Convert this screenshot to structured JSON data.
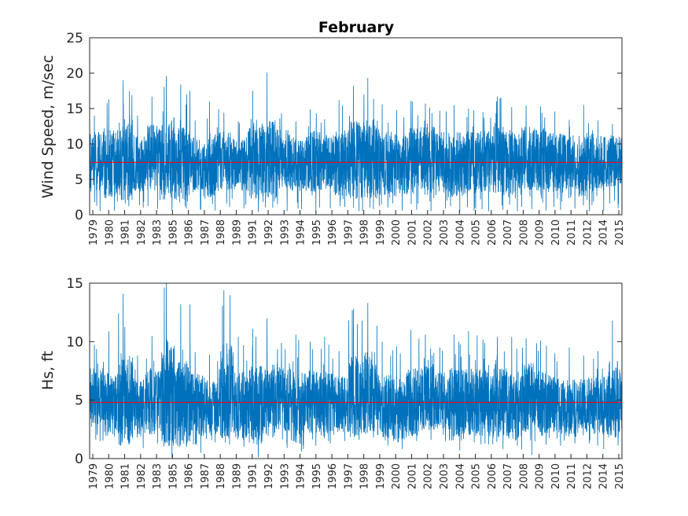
{
  "title": "February",
  "chart_data": [
    {
      "type": "line",
      "title": "February",
      "xlabel": "",
      "ylabel": "Wind Speed, m/sec",
      "ylim": [
        0,
        25
      ],
      "yticks": [
        0,
        5,
        10,
        15,
        20,
        25
      ],
      "xticks": [
        "1979",
        "1980",
        "1981",
        "1982",
        "1983",
        "1984",
        "1985",
        "1986",
        "1987",
        "1988",
        "1989",
        "1990",
        "1991",
        "1992",
        "1993",
        "1994",
        "1995",
        "1996",
        "1997",
        "1998",
        "1999",
        "2000",
        "2001",
        "2002",
        "2003",
        "2004",
        "2005",
        "2006",
        "2007",
        "2008",
        "2009",
        "2010",
        "2011",
        "2012",
        "2013",
        "2014",
        "2015"
      ],
      "xtick_labels_shown": [
        "1979",
        "1980",
        "1981",
        "1982",
        "1983",
        "1984",
        "1985",
        "1986",
        "1987",
        "1988",
        "1989",
        "1990",
        "1991",
        "1992",
        "1993",
        "1994",
        "1995",
        "1996",
        "1997",
        "1998",
        "1999",
        "2000",
        "2001",
        "2002",
        "2003",
        "2004",
        "2005",
        "2006",
        "2007",
        "2008",
        "2009",
        "2010",
        "2011",
        "2012",
        "2013",
        "2014",
        "2015"
      ],
      "x_tick_labels_rendered": [
        "1979",
        "1980",
        "1981",
        "1982",
        "1983",
        "1985",
        "1986",
        "1987",
        "1988",
        "1989",
        "1991",
        "1992",
        "1993",
        "1994",
        "1995",
        "1996",
        "1997",
        "1998",
        "1999",
        "2000",
        "2001",
        "2002",
        "2003",
        "2004",
        "2005",
        "2006",
        "2007",
        "2008",
        "2009",
        "2010",
        "2011",
        "2012",
        "2014",
        "2015"
      ],
      "series_color": "#0072BD",
      "mean_color": "#FF0000",
      "mean": 7.4,
      "n_years": 37,
      "year_stats": {
        "mean": [
          7.6,
          7.2,
          7.5,
          7.3,
          7.8,
          7.9,
          7.1,
          7.4,
          7.0,
          7.6,
          7.2,
          7.3,
          7.5,
          7.8,
          7.1,
          7.6,
          7.4,
          7.3,
          7.7,
          7.9,
          7.2,
          7.0,
          7.6,
          7.8,
          7.4,
          7.1,
          7.3,
          7.5,
          7.6,
          7.2,
          7.9,
          7.7,
          7.3,
          7.4,
          7.1,
          7.2,
          7.5
        ],
        "peak": [
          14,
          16.3,
          19,
          14,
          16.7,
          19.6,
          18.4,
          13.3,
          16,
          14.4,
          13.2,
          17.5,
          20.1,
          14.3,
          13.2,
          14.9,
          13.5,
          16.2,
          18.2,
          19.3,
          15.6,
          14.8,
          16.1,
          15.7,
          14.7,
          15.5,
          15.0,
          14.5,
          16.7,
          15.2,
          15.4,
          15.3,
          14.6,
          13.4,
          15.5,
          13.3,
          12.8
        ],
        "low": [
          0.5,
          0.6,
          1.2,
          1.0,
          0.8,
          0.6,
          0.9,
          0.7,
          0.6,
          1.1,
          0.9,
          0.4,
          1.0,
          0.5,
          0.8,
          0.7,
          0.9,
          1.1,
          0.5,
          0.8,
          1.0,
          0.6,
          0.7,
          0.5,
          0.9,
          0.4,
          0.6,
          0.5,
          0.7,
          0.5,
          0.8,
          0.6,
          0.7,
          0.9,
          0.5,
          0.6,
          0.9
        ]
      }
    },
    {
      "type": "line",
      "title": "",
      "xlabel": "",
      "ylabel": "Hs, ft",
      "ylim": [
        0,
        15
      ],
      "yticks": [
        0,
        5,
        10,
        15
      ],
      "x_tick_labels_rendered": [
        "1979",
        "1980",
        "1981",
        "1982",
        "1983",
        "1985",
        "1986",
        "1987",
        "1988",
        "1989",
        "1991",
        "1992",
        "1993",
        "1994",
        "1995",
        "1996",
        "1997",
        "1998",
        "1999",
        "2000",
        "2001",
        "2002",
        "2003",
        "2004",
        "2005",
        "2006",
        "2007",
        "2008",
        "2009",
        "2010",
        "2011",
        "2012",
        "2014",
        "2015"
      ],
      "series_color": "#0072BD",
      "mean_color": "#FF0000",
      "mean": 4.8,
      "n_years": 37,
      "year_stats": {
        "mean": [
          5.2,
          4.6,
          5.0,
          4.5,
          4.9,
          5.6,
          4.7,
          4.6,
          4.4,
          5.8,
          4.5,
          4.6,
          4.9,
          5.1,
          4.3,
          4.8,
          4.7,
          4.6,
          5.3,
          5.6,
          4.5,
          4.1,
          4.8,
          5.2,
          4.9,
          4.6,
          4.8,
          4.9,
          4.8,
          4.6,
          5.1,
          4.7,
          4.5,
          4.3,
          4.6,
          4.4,
          5.0
        ],
        "peak": [
          9.7,
          10.9,
          14.1,
          8.8,
          10.5,
          15.0,
          13.2,
          9.1,
          8.9,
          14.4,
          10.4,
          11.1,
          12.0,
          9.9,
          10.6,
          10.0,
          10.4,
          9.2,
          12.8,
          13.3,
          10.0,
          9.6,
          11.0,
          10.6,
          9.5,
          10.6,
          10.9,
          10.2,
          10.4,
          10.4,
          10.3,
          10.1,
          9.0,
          9.5,
          8.8,
          9.2,
          11.8
        ],
        "low": [
          1.5,
          1.9,
          1.2,
          0.9,
          1.3,
          0.1,
          1.0,
          0.5,
          1.4,
          1.2,
          1.0,
          0.1,
          1.8,
          0.9,
          0.6,
          1.1,
          1.3,
          1.5,
          1.6,
          1.8,
          1.1,
          0.8,
          1.5,
          1.6,
          1.5,
          0.7,
          1.4,
          1.2,
          0.8,
          1.1,
          0.3,
          1.2,
          1.1,
          1.3,
          1.3,
          0.8,
          1.1
        ]
      }
    }
  ]
}
